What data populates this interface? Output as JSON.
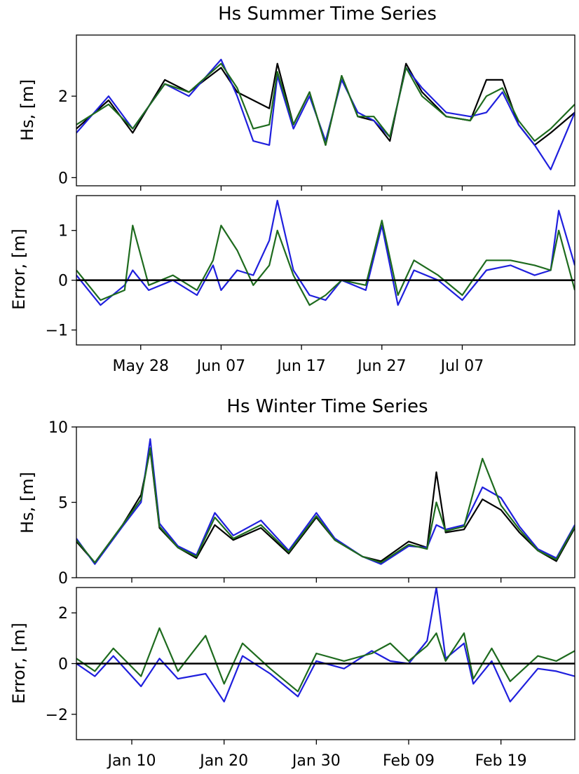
{
  "chart_data": [
    {
      "type": "line",
      "title": "Hs Summer Time Series",
      "ylabel": "Hs, [m]",
      "xlabel": "",
      "x_range": [
        "2019-05-20",
        "2019-07-21"
      ],
      "ylim": [
        -0.2,
        3.5
      ],
      "yticks": [
        0,
        2
      ],
      "xticks": [],
      "grid": false,
      "colors": [
        "#000000",
        "#1f1fdd",
        "#1e6b1e"
      ],
      "x": [
        "2019-05-20",
        "2019-05-24",
        "2019-05-27",
        "2019-05-31",
        "2019-06-03",
        "2019-06-07",
        "2019-06-09",
        "2019-06-11",
        "2019-06-13",
        "2019-06-14",
        "2019-06-16",
        "2019-06-18",
        "2019-06-20",
        "2019-06-22",
        "2019-06-24",
        "2019-06-26",
        "2019-06-28",
        "2019-06-30",
        "2019-07-02",
        "2019-07-05",
        "2019-07-08",
        "2019-07-10",
        "2019-07-12",
        "2019-07-14",
        "2019-07-16",
        "2019-07-18",
        "2019-07-21"
      ],
      "series": [
        {
          "values": [
            1.2,
            1.9,
            1.1,
            2.4,
            2.1,
            2.7,
            2.1,
            1.9,
            1.7,
            2.8,
            1.3,
            2.1,
            0.8,
            2.5,
            1.5,
            1.4,
            0.9,
            2.8,
            2.1,
            1.5,
            1.4,
            2.4,
            2.4,
            1.3,
            0.8,
            1.1,
            1.6
          ]
        },
        {
          "values": [
            1.1,
            2.0,
            1.2,
            2.3,
            2.0,
            2.9,
            2.0,
            0.9,
            0.8,
            2.5,
            1.2,
            2.0,
            0.9,
            2.4,
            1.6,
            1.4,
            1.0,
            2.7,
            2.2,
            1.6,
            1.5,
            1.6,
            2.1,
            1.3,
            0.8,
            0.2,
            1.6
          ]
        },
        {
          "values": [
            1.3,
            1.8,
            1.2,
            2.3,
            2.1,
            2.8,
            2.2,
            1.2,
            1.3,
            2.6,
            1.3,
            2.1,
            0.8,
            2.5,
            1.5,
            1.5,
            1.0,
            2.7,
            2.0,
            1.5,
            1.4,
            2.0,
            2.2,
            1.4,
            0.9,
            1.2,
            1.8
          ]
        }
      ]
    },
    {
      "type": "line",
      "title": "",
      "ylabel": "Error, [m]",
      "xlabel": "",
      "x_range": [
        "2019-05-20",
        "2019-07-21"
      ],
      "ylim": [
        -1.3,
        1.7
      ],
      "yticks": [
        -1,
        0,
        1
      ],
      "xticks": [
        "May 28",
        "Jun 07",
        "Jun 17",
        "Jun 27",
        "Jul 07"
      ],
      "xtick_dates": [
        "2019-05-28",
        "2019-06-07",
        "2019-06-17",
        "2019-06-27",
        "2019-07-07"
      ],
      "reference_line": 0,
      "grid": false,
      "colors": [
        "#1f1fdd",
        "#1e6b1e"
      ],
      "x": [
        "2019-05-20",
        "2019-05-23",
        "2019-05-26",
        "2019-05-27",
        "2019-05-29",
        "2019-06-01",
        "2019-06-04",
        "2019-06-06",
        "2019-06-07",
        "2019-06-09",
        "2019-06-11",
        "2019-06-13",
        "2019-06-14",
        "2019-06-16",
        "2019-06-18",
        "2019-06-20",
        "2019-06-22",
        "2019-06-25",
        "2019-06-27",
        "2019-06-29",
        "2019-07-01",
        "2019-07-04",
        "2019-07-07",
        "2019-07-10",
        "2019-07-13",
        "2019-07-16",
        "2019-07-18",
        "2019-07-19",
        "2019-07-21"
      ],
      "series": [
        {
          "values": [
            0.1,
            -0.5,
            -0.1,
            0.2,
            -0.2,
            0.0,
            -0.3,
            0.3,
            -0.2,
            0.2,
            0.1,
            0.8,
            1.6,
            0.2,
            -0.3,
            -0.4,
            0.0,
            -0.2,
            1.1,
            -0.5,
            0.2,
            0.0,
            -0.4,
            0.2,
            0.3,
            0.1,
            0.2,
            1.4,
            0.3
          ]
        },
        {
          "values": [
            0.2,
            -0.4,
            -0.2,
            1.1,
            -0.1,
            0.1,
            -0.2,
            0.4,
            1.1,
            0.6,
            -0.1,
            0.3,
            1.0,
            0.1,
            -0.5,
            -0.3,
            0.0,
            -0.1,
            1.2,
            -0.3,
            0.4,
            0.1,
            -0.3,
            0.4,
            0.4,
            0.3,
            0.2,
            1.0,
            -0.2
          ]
        }
      ]
    },
    {
      "type": "line",
      "title": "Hs Winter Time Series",
      "ylabel": "Hs, [m]",
      "xlabel": "",
      "x_range": [
        "2019-01-04",
        "2019-02-27"
      ],
      "ylim": [
        0,
        10
      ],
      "yticks": [
        0,
        5,
        10
      ],
      "xticks": [],
      "grid": false,
      "colors": [
        "#000000",
        "#1f1fdd",
        "#1e6b1e"
      ],
      "x": [
        "2019-01-04",
        "2019-01-06",
        "2019-01-09",
        "2019-01-11",
        "2019-01-12",
        "2019-01-13",
        "2019-01-15",
        "2019-01-17",
        "2019-01-19",
        "2019-01-21",
        "2019-01-24",
        "2019-01-27",
        "2019-01-30",
        "2019-02-01",
        "2019-02-04",
        "2019-02-06",
        "2019-02-09",
        "2019-02-11",
        "2019-02-12",
        "2019-02-13",
        "2019-02-15",
        "2019-02-17",
        "2019-02-19",
        "2019-02-21",
        "2019-02-23",
        "2019-02-25",
        "2019-02-27"
      ],
      "series": [
        {
          "values": [
            2.4,
            1.0,
            3.5,
            5.5,
            8.5,
            3.3,
            2.0,
            1.3,
            3.5,
            2.5,
            3.3,
            1.6,
            4.0,
            2.5,
            1.4,
            1.1,
            2.4,
            2.0,
            7.0,
            3.0,
            3.2,
            5.2,
            4.5,
            3.0,
            1.8,
            1.1,
            3.3
          ]
        },
        {
          "values": [
            2.6,
            0.9,
            3.4,
            5.0,
            9.2,
            3.6,
            2.1,
            1.5,
            4.3,
            2.8,
            3.8,
            1.8,
            4.3,
            2.6,
            1.4,
            0.9,
            2.1,
            2.0,
            3.5,
            3.2,
            3.5,
            6.0,
            5.3,
            3.4,
            1.9,
            1.3,
            3.5
          ]
        },
        {
          "values": [
            2.5,
            1.0,
            3.5,
            5.2,
            8.6,
            3.4,
            2.0,
            1.4,
            4.0,
            2.6,
            3.5,
            1.7,
            4.1,
            2.5,
            1.4,
            1.0,
            2.2,
            1.9,
            5.0,
            3.1,
            3.4,
            7.9,
            4.8,
            3.2,
            1.8,
            1.2,
            3.4
          ]
        }
      ]
    },
    {
      "type": "line",
      "title": "",
      "ylabel": "Error, [m]",
      "xlabel": "",
      "x_range": [
        "2019-01-04",
        "2019-02-27"
      ],
      "ylim": [
        -3,
        3
      ],
      "yticks": [
        -2,
        0,
        2
      ],
      "xticks": [
        "Jan 10",
        "Jan 20",
        "Jan 30",
        "Feb 09",
        "Feb 19"
      ],
      "xtick_dates": [
        "2019-01-10",
        "2019-01-20",
        "2019-01-30",
        "2019-02-09",
        "2019-02-19"
      ],
      "reference_line": 0,
      "grid": false,
      "colors": [
        "#1f1fdd",
        "#1e6b1e"
      ],
      "x": [
        "2019-01-04",
        "2019-01-06",
        "2019-01-08",
        "2019-01-11",
        "2019-01-13",
        "2019-01-15",
        "2019-01-18",
        "2019-01-20",
        "2019-01-22",
        "2019-01-25",
        "2019-01-28",
        "2019-01-30",
        "2019-02-02",
        "2019-02-05",
        "2019-02-07",
        "2019-02-09",
        "2019-02-11",
        "2019-02-12",
        "2019-02-13",
        "2019-02-15",
        "2019-02-16",
        "2019-02-18",
        "2019-02-20",
        "2019-02-23",
        "2019-02-25",
        "2019-02-27"
      ],
      "series": [
        {
          "values": [
            0.0,
            -0.5,
            0.3,
            -0.9,
            0.2,
            -0.6,
            -0.4,
            -1.5,
            0.3,
            -0.4,
            -1.3,
            0.1,
            -0.2,
            0.5,
            0.1,
            0.0,
            0.9,
            3.0,
            0.2,
            0.8,
            -0.8,
            0.1,
            -1.5,
            -0.2,
            -0.3,
            -0.5
          ]
        },
        {
          "values": [
            0.2,
            -0.3,
            0.6,
            -0.5,
            1.4,
            -0.3,
            1.1,
            -0.8,
            0.8,
            -0.2,
            -1.1,
            0.4,
            0.1,
            0.4,
            0.8,
            0.1,
            0.7,
            1.2,
            0.1,
            1.2,
            -0.6,
            0.6,
            -0.7,
            0.3,
            0.1,
            0.5
          ]
        }
      ]
    }
  ]
}
